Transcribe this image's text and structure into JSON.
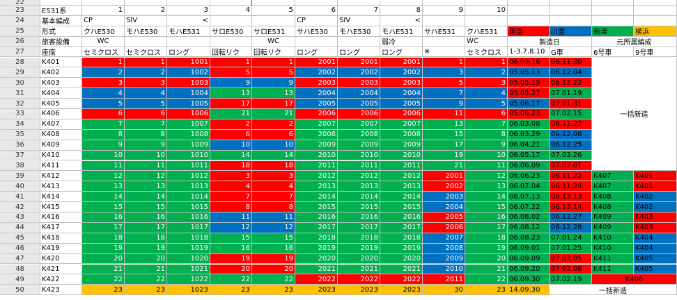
{
  "colors": {
    "red": "#ff0000",
    "blue": "#0070c0",
    "green": "#00b050",
    "yellow": "#ffc000",
    "white": "#ffffff"
  },
  "row_numbers": [
    22,
    23,
    24,
    25,
    26,
    27,
    28,
    29,
    30,
    31,
    32,
    33,
    34,
    35,
    36,
    37,
    38,
    39,
    40,
    41,
    42,
    43,
    44,
    45,
    46,
    47,
    48,
    49,
    50
  ],
  "header_rows": [
    [
      "",
      "",
      "",
      "",
      "",
      "",
      "",
      "",
      "",
      "",
      "",
      "",
      "",
      "",
      "",
      ""
    ],
    [
      "E531系",
      "1",
      "2",
      "3",
      "4",
      "5",
      "6",
      "7",
      "8",
      "9",
      "10",
      "",
      "",
      "",
      "",
      ""
    ],
    [
      "基本編成",
      "CP",
      "SIV",
      "<",
      "",
      "",
      "CP",
      "SIV",
      "<",
      "",
      "",
      "",
      "",
      "",
      "",
      ""
    ],
    [
      "形式",
      "クハE530",
      "モハE530",
      "モハE531",
      "サロE530",
      "サロE531",
      "サハE530",
      "モハE530",
      "モハE531",
      "サハE531",
      "クハE531",
      "東急",
      "川重",
      "新津",
      "横浜",
      ""
    ],
    [
      "旅客設備",
      "WC",
      "",
      "",
      "",
      "WC",
      "",
      "",
      "弱冷",
      "",
      "WC",
      "製造日",
      "",
      "元所属編成",
      "",
      ""
    ],
    [
      "座席",
      "セミクロス",
      "セミクロス",
      "ロング",
      "回転リク",
      "回転リク",
      "ロング",
      "ロング",
      "ロング",
      "※",
      "セミクロス",
      "1-3.7.8.10",
      "G車",
      "6号車",
      "9号車",
      ""
    ]
  ],
  "data_rows": [
    {
      "id": "K401",
      "v": [
        "1",
        "1",
        "1001",
        "1",
        "1",
        "2001",
        "2001",
        "2001",
        "1",
        "1"
      ],
      "c": [
        "r",
        "r",
        "r",
        "r",
        "r",
        "r",
        "r",
        "r",
        "r",
        "r"
      ],
      "date1": "06.03.16",
      "date2": "06.11.20",
      "dc": [
        "r",
        "r"
      ],
      "ex": [
        "",
        ""
      ],
      "exc": [
        "w",
        "w"
      ]
    },
    {
      "id": "K402",
      "v": [
        "2",
        "2",
        "1002",
        "5",
        "5",
        "2002",
        "2002",
        "2002",
        "3",
        "2"
      ],
      "c": [
        "b",
        "b",
        "b",
        "r",
        "r",
        "b",
        "b",
        "b",
        "b",
        "b"
      ],
      "date1": "05.05.13",
      "date2": "06.12.04",
      "dc": [
        "b",
        "b"
      ],
      "ex": [
        "",
        ""
      ],
      "exc": [
        "w",
        "w"
      ]
    },
    {
      "id": "K403",
      "v": [
        "3",
        "3",
        "1003",
        "9",
        "9",
        "2003",
        "2003",
        "2003",
        "5",
        "3"
      ],
      "c": [
        "r",
        "r",
        "r",
        "b",
        "b",
        "r",
        "r",
        "r",
        "r",
        "r"
      ],
      "date1": "05.05.19",
      "date2": "06.12.22",
      "dc": [
        "r",
        "r"
      ],
      "ex": [
        "",
        ""
      ],
      "exc": [
        "w",
        "w"
      ]
    },
    {
      "id": "K404",
      "v": [
        "4",
        "4",
        "1004",
        "13",
        "13",
        "2004",
        "2004",
        "2004",
        "7",
        "4"
      ],
      "c": [
        "b",
        "b",
        "b",
        "g",
        "g",
        "b",
        "b",
        "b",
        "b",
        "b"
      ],
      "date1": "05.05.27",
      "date2": "07.01.19",
      "dc": [
        "r",
        "g"
      ],
      "ex": [
        "",
        ""
      ],
      "exc": [
        "w",
        "w"
      ]
    },
    {
      "id": "K405",
      "v": [
        "5",
        "5",
        "1005",
        "17",
        "17",
        "2005",
        "2005",
        "2005",
        "9",
        "5"
      ],
      "c": [
        "b",
        "b",
        "b",
        "r",
        "r",
        "b",
        "b",
        "b",
        "b",
        "b"
      ],
      "date1": "05.06.17",
      "date2": "07.01.31",
      "dc": [
        "b",
        "r"
      ],
      "ex": [
        "",
        ""
      ],
      "exc": [
        "w",
        "w"
      ]
    },
    {
      "id": "K406",
      "v": [
        "6",
        "6",
        "1006",
        "21",
        "21",
        "2006",
        "2006",
        "2006",
        "11",
        "6"
      ],
      "c": [
        "r",
        "r",
        "r",
        "g",
        "g",
        "r",
        "r",
        "r",
        "r",
        "r"
      ],
      "date1": "05.06.23",
      "date2": "07.02.15",
      "dc": [
        "r",
        "g"
      ],
      "ex": [
        "",
        ""
      ],
      "exc": [
        "w",
        "w"
      ]
    },
    {
      "id": "K407",
      "v": [
        "7",
        "7",
        "1007",
        "2",
        "2",
        "2007",
        "2007",
        "2007",
        "13",
        "7"
      ],
      "c": [
        "g",
        "g",
        "g",
        "r",
        "r",
        "g",
        "g",
        "g",
        "g",
        "g"
      ],
      "date1": "06.03.08",
      "date2": "06.11.22",
      "dc": [
        "g",
        "r"
      ],
      "ex": [
        "",
        ""
      ],
      "exc": [
        "w",
        "w"
      ]
    },
    {
      "id": "K408",
      "v": [
        "8",
        "8",
        "1008",
        "6",
        "6",
        "2008",
        "2008",
        "2008",
        "15",
        "8"
      ],
      "c": [
        "g",
        "g",
        "g",
        "r",
        "r",
        "g",
        "g",
        "g",
        "g",
        "g"
      ],
      "date1": "06.03.29",
      "date2": "06.12.08",
      "dc": [
        "g",
        "b"
      ],
      "ex": [
        "",
        ""
      ],
      "exc": [
        "w",
        "w"
      ]
    },
    {
      "id": "K409",
      "v": [
        "9",
        "9",
        "1009",
        "10",
        "10",
        "2009",
        "2009",
        "2009",
        "17",
        "9"
      ],
      "c": [
        "g",
        "g",
        "g",
        "b",
        "b",
        "g",
        "g",
        "g",
        "g",
        "g"
      ],
      "date1": "06.04.21",
      "date2": "06.12.25",
      "dc": [
        "g",
        "b"
      ],
      "ex": [
        "",
        ""
      ],
      "exc": [
        "w",
        "w"
      ]
    },
    {
      "id": "K410",
      "v": [
        "10",
        "10",
        "1010",
        "14",
        "14",
        "2010",
        "2010",
        "2010",
        "19",
        "10"
      ],
      "c": [
        "g",
        "g",
        "g",
        "g",
        "g",
        "g",
        "g",
        "g",
        "g",
        "g"
      ],
      "date1": "06.05.17",
      "date2": "07.03.26",
      "dc": [
        "g",
        "g"
      ],
      "ex": [
        "",
        ""
      ],
      "exc": [
        "w",
        "w"
      ]
    },
    {
      "id": "K411",
      "v": [
        "11",
        "11",
        "1011",
        "18",
        "18",
        "2011",
        "2011",
        "2011",
        "21",
        "11"
      ],
      "c": [
        "g",
        "g",
        "g",
        "r",
        "r",
        "g",
        "g",
        "g",
        "g",
        "g"
      ],
      "date1": "06.06.09",
      "date2": "07.02.01",
      "dc": [
        "g",
        "r"
      ],
      "ex": [
        "",
        ""
      ],
      "exc": [
        "w",
        "w"
      ]
    },
    {
      "id": "K412",
      "v": [
        "12",
        "12",
        "1012",
        "3",
        "3",
        "2012",
        "2012",
        "2012",
        "2001",
        "12"
      ],
      "c": [
        "g",
        "g",
        "g",
        "r",
        "r",
        "g",
        "g",
        "g",
        "r",
        "g"
      ],
      "date1": "06.06.23",
      "date2": "06.11.22",
      "dc": [
        "g",
        "r"
      ],
      "ex": [
        "K407",
        "K401"
      ],
      "exc": [
        "g",
        "r"
      ]
    },
    {
      "id": "K413",
      "v": [
        "13",
        "13",
        "1013",
        "4",
        "4",
        "2013",
        "2013",
        "2013",
        "2002",
        "13"
      ],
      "c": [
        "g",
        "g",
        "g",
        "r",
        "r",
        "g",
        "g",
        "g",
        "r",
        "g"
      ],
      "date1": "06.07.04",
      "date2": "06.11.24",
      "dc": [
        "g",
        "r"
      ],
      "ex": [
        "K407",
        "K401"
      ],
      "exc": [
        "g",
        "r"
      ]
    },
    {
      "id": "K414",
      "v": [
        "14",
        "14",
        "1014",
        "7",
        "7",
        "2014",
        "2014",
        "2014",
        "2003",
        "14"
      ],
      "c": [
        "g",
        "g",
        "g",
        "r",
        "r",
        "g",
        "g",
        "g",
        "b",
        "g"
      ],
      "date1": "06.07.13",
      "date2": "06.12.13",
      "dc": [
        "g",
        "r"
      ],
      "ex": [
        "K408",
        "K402"
      ],
      "exc": [
        "g",
        "b"
      ]
    },
    {
      "id": "K415",
      "v": [
        "15",
        "15",
        "1015",
        "8",
        "8",
        "2015",
        "2015",
        "2015",
        "2004",
        "15"
      ],
      "c": [
        "g",
        "g",
        "g",
        "r",
        "r",
        "g",
        "g",
        "g",
        "b",
        "g"
      ],
      "date1": "06.07.22",
      "date2": "06.12.14",
      "dc": [
        "g",
        "r"
      ],
      "ex": [
        "K408",
        "K402"
      ],
      "exc": [
        "g",
        "b"
      ]
    },
    {
      "id": "K416",
      "v": [
        "16",
        "16",
        "1016",
        "11",
        "11",
        "2016",
        "2016",
        "2016",
        "2005",
        "16"
      ],
      "c": [
        "g",
        "g",
        "g",
        "b",
        "b",
        "g",
        "g",
        "g",
        "r",
        "g"
      ],
      "date1": "06.08.02",
      "date2": "06.12.27",
      "dc": [
        "g",
        "b"
      ],
      "ex": [
        "K409",
        "K403"
      ],
      "exc": [
        "g",
        "r"
      ]
    },
    {
      "id": "K417",
      "v": [
        "17",
        "17",
        "1017",
        "12",
        "12",
        "2017",
        "2017",
        "2017",
        "2006",
        "17"
      ],
      "c": [
        "g",
        "g",
        "g",
        "b",
        "b",
        "g",
        "g",
        "g",
        "r",
        "g"
      ],
      "date1": "06.08.12",
      "date2": "06.12.28",
      "dc": [
        "g",
        "b"
      ],
      "ex": [
        "K409",
        "K403"
      ],
      "exc": [
        "g",
        "r"
      ]
    },
    {
      "id": "K418",
      "v": [
        "18",
        "18",
        "1018",
        "15",
        "15",
        "2018",
        "2018",
        "2018",
        "2007",
        "18"
      ],
      "c": [
        "g",
        "g",
        "g",
        "g",
        "g",
        "g",
        "g",
        "g",
        "b",
        "g"
      ],
      "date1": "06.08.23",
      "date2": "07.01.24",
      "dc": [
        "g",
        "g"
      ],
      "ex": [
        "K410",
        "K404"
      ],
      "exc": [
        "g",
        "b"
      ]
    },
    {
      "id": "K419",
      "v": [
        "19",
        "19",
        "1019",
        "16",
        "16",
        "2019",
        "2019",
        "2019",
        "2008",
        "19"
      ],
      "c": [
        "g",
        "g",
        "g",
        "g",
        "g",
        "g",
        "g",
        "g",
        "b",
        "g"
      ],
      "date1": "06.09.01",
      "date2": "07.01.25",
      "dc": [
        "g",
        "g"
      ],
      "ex": [
        "K410",
        "K404"
      ],
      "exc": [
        "g",
        "b"
      ]
    },
    {
      "id": "K420",
      "v": [
        "20",
        "20",
        "1020",
        "19",
        "19",
        "2020",
        "2020",
        "2020",
        "2009",
        "20"
      ],
      "c": [
        "g",
        "g",
        "g",
        "r",
        "r",
        "g",
        "g",
        "g",
        "b",
        "g"
      ],
      "date1": "06.09.09",
      "date2": "07.02.05",
      "dc": [
        "g",
        "r"
      ],
      "ex": [
        "K411",
        "K405"
      ],
      "exc": [
        "g",
        "b"
      ]
    },
    {
      "id": "K421",
      "v": [
        "21",
        "21",
        "1021",
        "20",
        "20",
        "2021",
        "2021",
        "2021",
        "2010",
        "21"
      ],
      "c": [
        "g",
        "g",
        "g",
        "r",
        "r",
        "g",
        "g",
        "g",
        "b",
        "g"
      ],
      "date1": "06.09.20",
      "date2": "07.02.08",
      "dc": [
        "g",
        "r"
      ],
      "ex": [
        "K411",
        "K405"
      ],
      "exc": [
        "g",
        "b"
      ]
    },
    {
      "id": "K422",
      "v": [
        "22",
        "22",
        "1022",
        "22",
        "22",
        "2022",
        "2022",
        "2022",
        "2011",
        "22"
      ],
      "c": [
        "g",
        "g",
        "g",
        "g",
        "g",
        "r",
        "r",
        "r",
        "r",
        "g"
      ],
      "date1": "06.09.30",
      "date2": "07.02.19",
      "dc": [
        "g",
        "g"
      ],
      "ex": [
        "K406",
        ""
      ],
      "exc": [
        "r",
        "r"
      ]
    },
    {
      "id": "K423",
      "v": [
        "23",
        "23",
        "1023",
        "23",
        "23",
        "2023",
        "2023",
        "2023",
        "30",
        "23"
      ],
      "c": [
        "y",
        "y",
        "y",
        "y",
        "y",
        "y",
        "y",
        "y",
        "y",
        "y"
      ],
      "date1": "14.09.30",
      "date2": "",
      "dc": [
        "y",
        "w"
      ],
      "ex": [
        "",
        ""
      ],
      "exc": [
        "w",
        "w"
      ]
    }
  ],
  "notes": {
    "bulk_new_1": "一括新造",
    "bulk_new_2": "一括新造"
  }
}
